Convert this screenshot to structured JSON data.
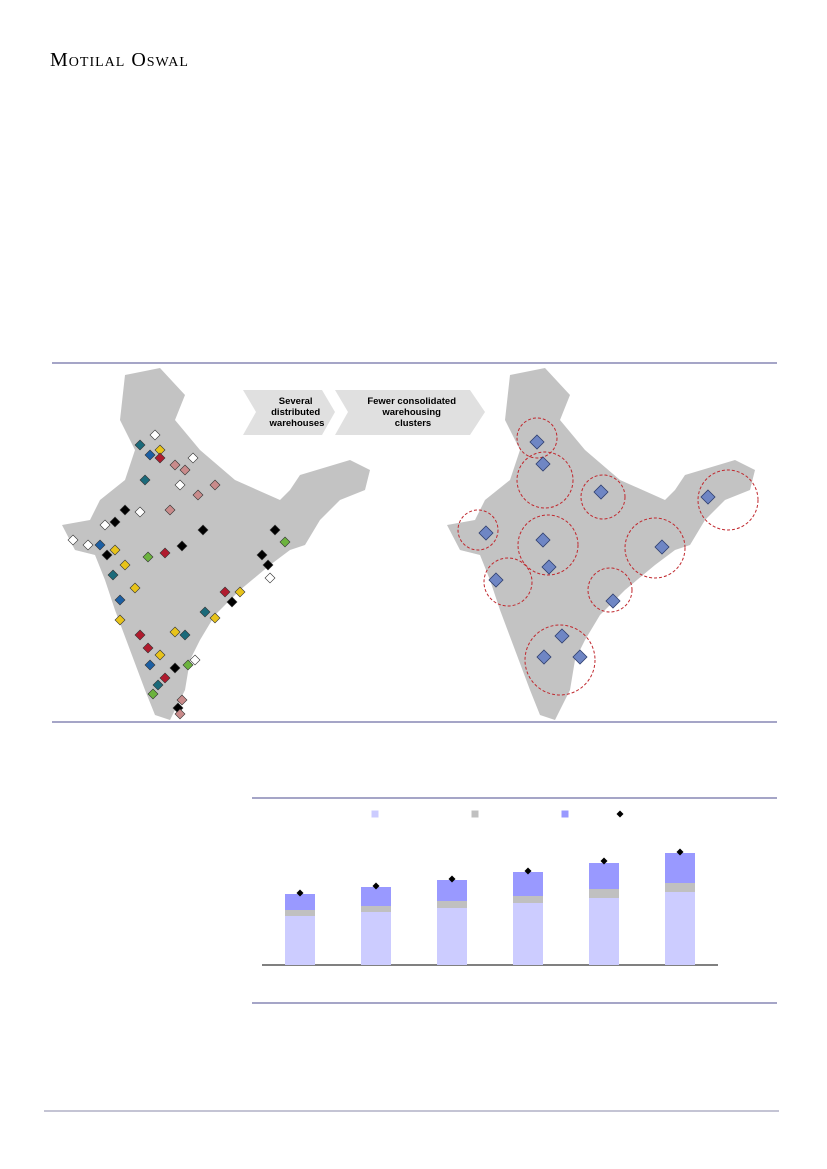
{
  "header": {
    "brand": "Motilal Oswal"
  },
  "figure": {
    "left_label": [
      "Several",
      "distributed",
      "warehouses"
    ],
    "right_label": [
      "Fewer consolidated",
      "warehousing",
      "clusters"
    ]
  },
  "chart_data": {
    "type": "bar",
    "stacked": true,
    "series": [
      {
        "color": "#ccccff",
        "values": [
          49,
          53,
          57,
          62,
          67,
          73
        ]
      },
      {
        "color": "#c0c0c0",
        "values": [
          6,
          6,
          7,
          7,
          9,
          9
        ]
      },
      {
        "color": "#9999ff",
        "values": [
          16,
          19,
          21,
          24,
          26,
          30
        ]
      }
    ],
    "markers": {
      "color": "#000000",
      "values": [
        72,
        79,
        86,
        94,
        104,
        113
      ]
    }
  }
}
